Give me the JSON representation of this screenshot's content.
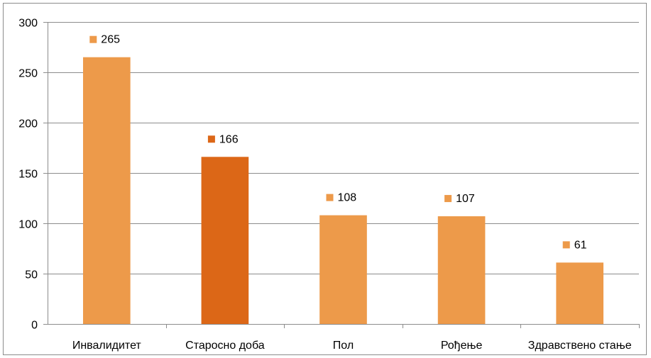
{
  "chart_data": {
    "type": "bar",
    "title": "",
    "xlabel": "",
    "ylabel": "",
    "categories": [
      "Инвалидитет",
      "Старосно доба",
      "Пол",
      "Рођење",
      "Здравствено стање"
    ],
    "values": [
      265,
      166,
      108,
      107,
      61
    ],
    "ylim": [
      0,
      300
    ],
    "yticks": [
      0,
      50,
      100,
      150,
      200,
      250,
      300
    ],
    "grid": true,
    "bar_colors": [
      "#ed9a4a",
      "#dc6717",
      "#ed9a4a",
      "#ed9a4a",
      "#ed9a4a"
    ],
    "gridline_color": "#8c8c8c",
    "axis_color": "#8c8c8c"
  }
}
